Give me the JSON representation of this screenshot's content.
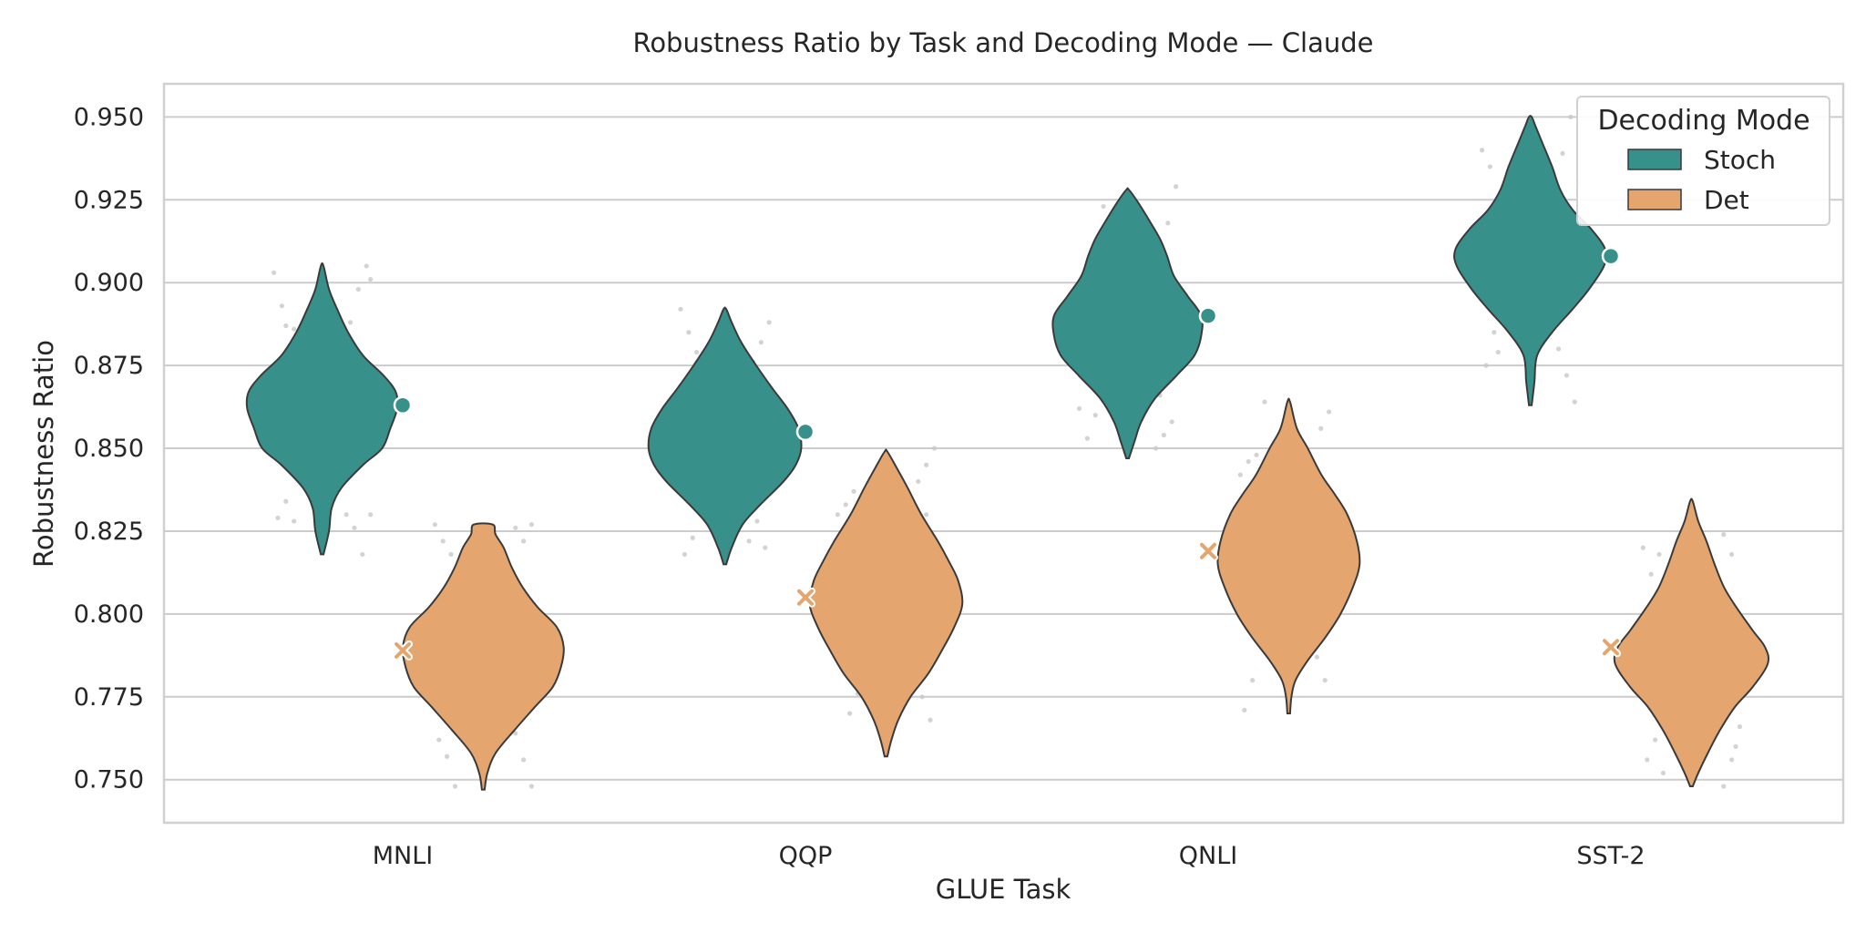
{
  "chart_data": {
    "type": "violin",
    "title": "Robustness Ratio by Task and Decoding Mode — Claude",
    "xlabel": "GLUE Task",
    "ylabel": "Robustness Ratio",
    "ylim": [
      0.737,
      0.96
    ],
    "yticks": [
      "0.750",
      "0.775",
      "0.800",
      "0.825",
      "0.850",
      "0.875",
      "0.900",
      "0.925",
      "0.950"
    ],
    "grid": true,
    "categories": [
      "MNLI",
      "QQP",
      "QNLI",
      "SST-2"
    ],
    "legend": {
      "title": "Decoding Mode",
      "placement": "top-right"
    },
    "series": [
      {
        "name": "Stoch",
        "color": "#37918a",
        "marker": "circle",
        "means": [
          0.863,
          0.855,
          0.89,
          0.908
        ],
        "violins": [
          {
            "min": 0.818,
            "max": 0.905,
            "profile": [
              [
                0.818,
                2
              ],
              [
                0.825,
                10
              ],
              [
                0.832,
                14
              ],
              [
                0.838,
                28
              ],
              [
                0.845,
                60
              ],
              [
                0.85,
                88
              ],
              [
                0.856,
                100
              ],
              [
                0.862,
                110
              ],
              [
                0.867,
                108
              ],
              [
                0.872,
                90
              ],
              [
                0.878,
                60
              ],
              [
                0.885,
                38
              ],
              [
                0.892,
                22
              ],
              [
                0.898,
                10
              ],
              [
                0.905,
                2
              ]
            ]
          },
          {
            "min": 0.815,
            "max": 0.892,
            "profile": [
              [
                0.815,
                2
              ],
              [
                0.82,
                10
              ],
              [
                0.827,
                26
              ],
              [
                0.833,
                52
              ],
              [
                0.84,
                86
              ],
              [
                0.845,
                104
              ],
              [
                0.85,
                112
              ],
              [
                0.856,
                108
              ],
              [
                0.862,
                92
              ],
              [
                0.868,
                70
              ],
              [
                0.875,
                46
              ],
              [
                0.882,
                24
              ],
              [
                0.888,
                10
              ],
              [
                0.892,
                2
              ]
            ]
          },
          {
            "min": 0.847,
            "max": 0.928,
            "profile": [
              [
                0.847,
                2
              ],
              [
                0.852,
                10
              ],
              [
                0.858,
                20
              ],
              [
                0.865,
                40
              ],
              [
                0.872,
                72
              ],
              [
                0.878,
                98
              ],
              [
                0.884,
                108
              ],
              [
                0.89,
                108
              ],
              [
                0.896,
                88
              ],
              [
                0.902,
                68
              ],
              [
                0.908,
                58
              ],
              [
                0.913,
                48
              ],
              [
                0.918,
                34
              ],
              [
                0.924,
                16
              ],
              [
                0.928,
                2
              ]
            ]
          },
          {
            "min": 0.863,
            "max": 0.95,
            "profile": [
              [
                0.863,
                2
              ],
              [
                0.87,
                6
              ],
              [
                0.878,
                10
              ],
              [
                0.885,
                32
              ],
              [
                0.892,
                62
              ],
              [
                0.898,
                86
              ],
              [
                0.905,
                108
              ],
              [
                0.91,
                110
              ],
              [
                0.916,
                90
              ],
              [
                0.922,
                62
              ],
              [
                0.928,
                44
              ],
              [
                0.935,
                32
              ],
              [
                0.942,
                18
              ],
              [
                0.947,
                8
              ],
              [
                0.95,
                2
              ]
            ]
          }
        ]
      },
      {
        "name": "Det",
        "color": "#e4a56f",
        "marker": "x",
        "means": [
          0.789,
          0.805,
          0.819,
          0.79
        ],
        "violins": [
          {
            "min": 0.747,
            "max": 0.827,
            "profile": [
              [
                0.747,
                2
              ],
              [
                0.752,
                6
              ],
              [
                0.758,
                18
              ],
              [
                0.765,
                46
              ],
              [
                0.772,
                76
              ],
              [
                0.778,
                102
              ],
              [
                0.784,
                114
              ],
              [
                0.79,
                118
              ],
              [
                0.796,
                108
              ],
              [
                0.802,
                80
              ],
              [
                0.808,
                58
              ],
              [
                0.814,
                42
              ],
              [
                0.82,
                30
              ],
              [
                0.824,
                18
              ],
              [
                0.827,
                14
              ]
            ]
          },
          {
            "min": 0.757,
            "max": 0.849,
            "profile": [
              [
                0.757,
                2
              ],
              [
                0.762,
                8
              ],
              [
                0.768,
                18
              ],
              [
                0.775,
                36
              ],
              [
                0.782,
                62
              ],
              [
                0.789,
                82
              ],
              [
                0.796,
                100
              ],
              [
                0.803,
                112
              ],
              [
                0.81,
                106
              ],
              [
                0.816,
                92
              ],
              [
                0.822,
                76
              ],
              [
                0.83,
                52
              ],
              [
                0.838,
                32
              ],
              [
                0.844,
                16
              ],
              [
                0.849,
                2
              ]
            ]
          },
          {
            "min": 0.77,
            "max": 0.864,
            "profile": [
              [
                0.77,
                2
              ],
              [
                0.775,
                4
              ],
              [
                0.78,
                10
              ],
              [
                0.786,
                28
              ],
              [
                0.793,
                54
              ],
              [
                0.8,
                76
              ],
              [
                0.808,
                94
              ],
              [
                0.815,
                104
              ],
              [
                0.822,
                100
              ],
              [
                0.83,
                86
              ],
              [
                0.836,
                68
              ],
              [
                0.842,
                48
              ],
              [
                0.85,
                28
              ],
              [
                0.856,
                12
              ],
              [
                0.864,
                2
              ]
            ]
          },
          {
            "min": 0.748,
            "max": 0.834,
            "profile": [
              [
                0.748,
                2
              ],
              [
                0.752,
                10
              ],
              [
                0.758,
                24
              ],
              [
                0.765,
                42
              ],
              [
                0.772,
                64
              ],
              [
                0.778,
                90
              ],
              [
                0.785,
                112
              ],
              [
                0.79,
                108
              ],
              [
                0.795,
                90
              ],
              [
                0.802,
                66
              ],
              [
                0.808,
                48
              ],
              [
                0.815,
                34
              ],
              [
                0.822,
                22
              ],
              [
                0.828,
                10
              ],
              [
                0.834,
                2
              ]
            ]
          }
        ]
      }
    ],
    "points_offsets": [
      [
        [
          -0.12,
          0.903
        ],
        [
          -0.1,
          0.893
        ],
        [
          -0.09,
          0.887
        ],
        [
          -0.07,
          0.886
        ],
        [
          0.07,
          0.888
        ],
        [
          0.09,
          0.898
        ],
        [
          0.11,
          0.905
        ],
        [
          0.12,
          0.901
        ],
        [
          -0.11,
          0.829
        ],
        [
          -0.09,
          0.834
        ],
        [
          -0.07,
          0.828
        ],
        [
          0.06,
          0.83
        ],
        [
          0.08,
          0.826
        ],
        [
          0.1,
          0.818
        ],
        [
          0.12,
          0.83
        ],
        [
          -0.08,
          0.876
        ],
        [
          -0.1,
          0.846
        ],
        [
          0.09,
          0.873
        ]
      ],
      [
        [
          -0.11,
          0.892
        ],
        [
          -0.09,
          0.885
        ],
        [
          -0.07,
          0.879
        ],
        [
          0.07,
          0.876
        ],
        [
          0.09,
          0.882
        ],
        [
          0.11,
          0.888
        ],
        [
          -0.1,
          0.818
        ],
        [
          -0.08,
          0.823
        ],
        [
          0.06,
          0.822
        ],
        [
          0.08,
          0.828
        ],
        [
          0.1,
          0.82
        ],
        [
          -0.12,
          0.866
        ]
      ],
      [
        [
          -0.12,
          0.862
        ],
        [
          -0.08,
          0.86
        ],
        [
          0.07,
          0.85
        ],
        [
          0.09,
          0.854
        ],
        [
          0.11,
          0.858
        ],
        [
          0.1,
          0.918
        ],
        [
          0.12,
          0.929
        ],
        [
          -0.06,
          0.923
        ],
        [
          0.08,
          0.866
        ],
        [
          -0.1,
          0.853
        ]
      ],
      [
        [
          -0.12,
          0.94
        ],
        [
          -0.1,
          0.935
        ],
        [
          -0.08,
          0.879
        ],
        [
          0.08,
          0.939
        ],
        [
          0.1,
          0.95
        ],
        [
          0.12,
          0.93
        ],
        [
          -0.11,
          0.875
        ],
        [
          -0.09,
          0.885
        ],
        [
          0.07,
          0.88
        ],
        [
          0.09,
          0.872
        ],
        [
          0.11,
          0.864
        ],
        [
          0.12,
          0.92
        ]
      ]
    ],
    "points_offsets_det": [
      [
        [
          -0.12,
          0.827
        ],
        [
          -0.1,
          0.822
        ],
        [
          -0.08,
          0.818
        ],
        [
          0.08,
          0.826
        ],
        [
          0.1,
          0.822
        ],
        [
          0.12,
          0.827
        ],
        [
          -0.11,
          0.762
        ],
        [
          -0.09,
          0.757
        ],
        [
          -0.07,
          0.748
        ],
        [
          0.08,
          0.764
        ],
        [
          0.1,
          0.756
        ],
        [
          0.12,
          0.748
        ]
      ],
      [
        [
          -0.12,
          0.83
        ],
        [
          -0.1,
          0.833
        ],
        [
          -0.08,
          0.837
        ],
        [
          0.08,
          0.84
        ],
        [
          0.1,
          0.845
        ],
        [
          0.12,
          0.85
        ],
        [
          -0.09,
          0.77
        ],
        [
          -0.07,
          0.776
        ],
        [
          0.09,
          0.775
        ],
        [
          0.11,
          0.768
        ],
        [
          0.1,
          0.83
        ]
      ],
      [
        [
          -0.12,
          0.842
        ],
        [
          -0.1,
          0.846
        ],
        [
          -0.08,
          0.848
        ],
        [
          0.08,
          0.856
        ],
        [
          0.1,
          0.861
        ],
        [
          -0.11,
          0.771
        ],
        [
          -0.09,
          0.78
        ],
        [
          0.07,
          0.787
        ],
        [
          0.09,
          0.78
        ],
        [
          -0.06,
          0.864
        ]
      ],
      [
        [
          -0.12,
          0.82
        ],
        [
          -0.1,
          0.812
        ],
        [
          -0.08,
          0.818
        ],
        [
          0.08,
          0.824
        ],
        [
          0.1,
          0.818
        ],
        [
          -0.11,
          0.756
        ],
        [
          -0.09,
          0.762
        ],
        [
          -0.07,
          0.752
        ],
        [
          0.08,
          0.748
        ],
        [
          0.1,
          0.756
        ],
        [
          0.12,
          0.766
        ],
        [
          0.11,
          0.76
        ]
      ]
    ]
  }
}
